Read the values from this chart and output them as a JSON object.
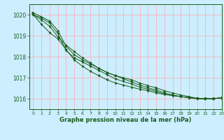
{
  "background_color": "#cceeff",
  "grid_color": "#ffaaaa",
  "line_color": "#1a5c1a",
  "marker_color": "#1a5c1a",
  "xlabel": "Graphe pression niveau de la mer (hPa)",
  "xlabel_color": "#1a5c1a",
  "tick_color": "#1a5c1a",
  "xlim": [
    -0.5,
    23
  ],
  "ylim": [
    1015.5,
    1020.5
  ],
  "yticks": [
    1016,
    1017,
    1018,
    1019,
    1020
  ],
  "xticks": [
    0,
    1,
    2,
    3,
    4,
    5,
    6,
    7,
    8,
    9,
    10,
    11,
    12,
    13,
    14,
    15,
    16,
    17,
    18,
    19,
    20,
    21,
    22,
    23
  ],
  "hours": [
    0,
    1,
    2,
    3,
    4,
    5,
    6,
    7,
    8,
    9,
    10,
    11,
    12,
    13,
    14,
    15,
    16,
    17,
    18,
    19,
    20,
    21,
    22,
    23
  ],
  "line1": [
    1020.0,
    1019.85,
    1019.6,
    1019.1,
    1018.3,
    1017.95,
    1017.75,
    1017.55,
    1017.35,
    1017.15,
    1016.95,
    1016.82,
    1016.7,
    1016.55,
    1016.45,
    1016.35,
    1016.22,
    1016.15,
    1016.1,
    1016.05,
    1016.0,
    1016.0,
    1016.0,
    1016.05
  ],
  "line2": [
    1020.0,
    1019.75,
    1019.45,
    1018.95,
    1018.55,
    1018.25,
    1017.95,
    1017.7,
    1017.45,
    1017.25,
    1017.1,
    1016.95,
    1016.8,
    1016.65,
    1016.52,
    1016.42,
    1016.28,
    1016.18,
    1016.1,
    1016.05,
    1016.0,
    1016.0,
    1016.0,
    1016.05
  ],
  "line3": [
    1020.0,
    1019.55,
    1019.15,
    1018.85,
    1018.35,
    1017.85,
    1017.55,
    1017.3,
    1017.1,
    1016.9,
    1016.75,
    1016.65,
    1016.55,
    1016.45,
    1016.38,
    1016.28,
    1016.2,
    1016.15,
    1016.1,
    1016.05,
    1016.0,
    1016.0,
    1016.0,
    1016.05
  ],
  "line4": [
    1020.1,
    1019.9,
    1019.7,
    1019.25,
    1018.5,
    1018.1,
    1017.85,
    1017.65,
    1017.45,
    1017.25,
    1017.1,
    1017.0,
    1016.9,
    1016.75,
    1016.62,
    1016.52,
    1016.38,
    1016.28,
    1016.18,
    1016.1,
    1016.02,
    1016.0,
    1016.0,
    1016.05
  ]
}
